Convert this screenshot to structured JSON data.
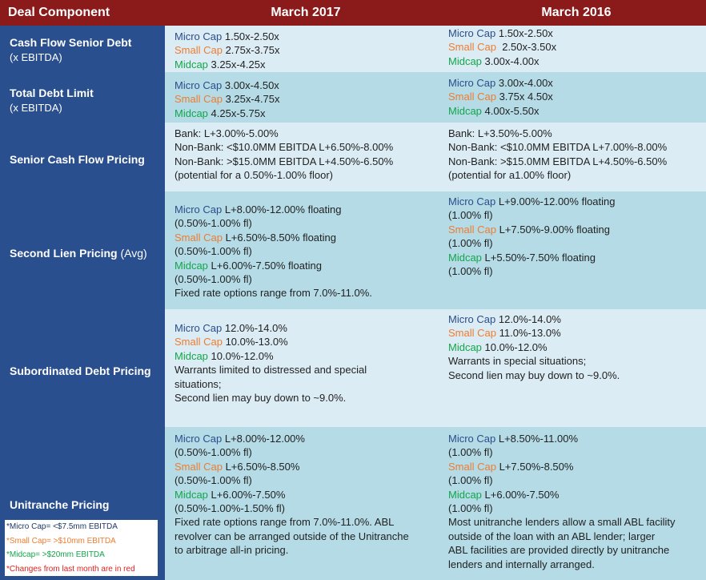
{
  "header": {
    "component_label": "Deal Component",
    "col_2017": "March 2017",
    "col_2016": "March 2016"
  },
  "rows": [
    {
      "label": "Cash Flow Senior Debt",
      "sublabel": "(x EBITDA)",
      "suffix": "",
      "mar2017": [
        [
          {
            "t": "Micro Cap",
            "c": "micro"
          },
          {
            "t": " 1.50x-2.50x",
            "c": "plain"
          }
        ],
        [
          {
            "t": "Small Cap",
            "c": "small"
          },
          {
            "t": " 2.75x-3.75x",
            "c": "plain"
          }
        ],
        [
          {
            "t": "Midcap",
            "c": "mid"
          },
          {
            "t": " 3.25x-4.25x",
            "c": "plain"
          }
        ]
      ],
      "mar2016": [
        [
          {
            "t": "Micro Cap",
            "c": "micro"
          },
          {
            "t": " 1.50x-2.50x",
            "c": "plain"
          }
        ],
        [
          {
            "t": "Small Cap",
            "c": "small"
          },
          {
            "t": "  2.50x-3.50x",
            "c": "plain"
          }
        ],
        [
          {
            "t": "Midcap",
            "c": "mid"
          },
          {
            "t": " 3.00x-4.00x",
            "c": "plain"
          }
        ]
      ]
    },
    {
      "label": "Total Debt Limit",
      "sublabel": "(x EBITDA)",
      "suffix": "",
      "mar2017": [
        [
          {
            "t": "Micro Cap",
            "c": "micro"
          },
          {
            "t": " 3.00x-4.50x",
            "c": "plain"
          }
        ],
        [
          {
            "t": "Small Cap",
            "c": "small"
          },
          {
            "t": " 3.25x-4.75x",
            "c": "plain"
          }
        ],
        [
          {
            "t": "Midcap",
            "c": "mid"
          },
          {
            "t": " 4.25x-5.75x",
            "c": "plain"
          }
        ]
      ],
      "mar2016": [
        [
          {
            "t": "Micro Cap",
            "c": "micro"
          },
          {
            "t": " 3.00x-4.00x",
            "c": "plain"
          }
        ],
        [
          {
            "t": "Small Cap",
            "c": "small"
          },
          {
            "t": " 3.75x 4.50x",
            "c": "plain"
          }
        ],
        [
          {
            "t": "Midcap",
            "c": "mid"
          },
          {
            "t": " 4.00x-5.50x",
            "c": "plain"
          }
        ]
      ]
    },
    {
      "label": "Senior Cash Flow Pricing",
      "sublabel": "",
      "suffix": "",
      "mar2017": [
        [
          {
            "t": "Bank: L+3.00%-5.00%",
            "c": "plain"
          }
        ],
        [
          {
            "t": "Non-Bank: <$10.0MM EBITDA L+6.50%-8.00%",
            "c": "plain"
          }
        ],
        [
          {
            "t": "Non-Bank: >$15.0MM EBITDA L+4.50%-6.50%",
            "c": "plain"
          }
        ],
        [
          {
            "t": "(potential for a 0.50%-1.00% floor)",
            "c": "plain"
          }
        ]
      ],
      "mar2016": [
        [
          {
            "t": "Bank: L+3.50%-5.00%",
            "c": "plain"
          }
        ],
        [
          {
            "t": "Non-Bank: <$10.0MM EBITDA L+7.00%-8.00%",
            "c": "plain"
          }
        ],
        [
          {
            "t": "Non-Bank: >$15.0MM EBITDA L+4.50%-6.50%",
            "c": "plain"
          }
        ],
        [
          {
            "t": "(potential for a1.00% floor)",
            "c": "plain"
          }
        ]
      ]
    },
    {
      "label": "Second Lien Pricing",
      "sublabel": "",
      "suffix": " (Avg)",
      "mar2017": [
        [
          {
            "t": "Micro Cap",
            "c": "micro"
          },
          {
            "t": " L+8.00%-12.00% floating",
            "c": "plain"
          }
        ],
        [
          {
            "t": "(0.50%-1.00% fl)",
            "c": "plain"
          }
        ],
        [
          {
            "t": "Small Cap",
            "c": "small"
          },
          {
            "t": " L+6.50%-8.50% floating",
            "c": "plain"
          }
        ],
        [
          {
            "t": "(0.50%-1.00% fl)",
            "c": "plain"
          }
        ],
        [
          {
            "t": "Midcap",
            "c": "mid"
          },
          {
            "t": " L+6.00%-7.50% floating",
            "c": "plain"
          }
        ],
        [
          {
            "t": "(0.50%-1.00% fl)",
            "c": "plain"
          }
        ],
        [
          {
            "t": "Fixed rate options range from 7.0%-11.0%.",
            "c": "plain"
          }
        ]
      ],
      "mar2016": [
        [
          {
            "t": "Micro Cap",
            "c": "micro"
          },
          {
            "t": " L+9.00%-12.00% floating",
            "c": "plain"
          }
        ],
        [
          {
            "t": "(1.00% fl)",
            "c": "plain"
          }
        ],
        [
          {
            "t": "Small Cap",
            "c": "small"
          },
          {
            "t": " L+7.50%-9.00% floating",
            "c": "plain"
          }
        ],
        [
          {
            "t": "(1.00% fl)",
            "c": "plain"
          }
        ],
        [
          {
            "t": "Midcap",
            "c": "mid"
          },
          {
            "t": " L+5.50%-7.50% floating",
            "c": "plain"
          }
        ],
        [
          {
            "t": "(1.00% fl)",
            "c": "plain"
          }
        ]
      ]
    },
    {
      "label": "Subordinated Debt Pricing",
      "sublabel": "",
      "suffix": "",
      "mar2017": [
        [
          {
            "t": "Micro Cap",
            "c": "micro"
          },
          {
            "t": " 12.0%-14.0%",
            "c": "plain"
          }
        ],
        [
          {
            "t": "Small Cap",
            "c": "small"
          },
          {
            "t": " 10.0%-13.0%",
            "c": "plain"
          }
        ],
        [
          {
            "t": "Midcap",
            "c": "mid"
          },
          {
            "t": " 10.0%-12.0%",
            "c": "plain"
          }
        ],
        [
          {
            "t": "Warrants limited to distressed and special",
            "c": "plain"
          }
        ],
        [
          {
            "t": "situations;",
            "c": "plain"
          }
        ],
        [
          {
            "t": "Second lien may buy down to ~9.0%.",
            "c": "plain"
          }
        ]
      ],
      "mar2016": [
        [
          {
            "t": "Micro Cap",
            "c": "micro"
          },
          {
            "t": " 12.0%-14.0%",
            "c": "plain"
          }
        ],
        [
          {
            "t": "Small Cap",
            "c": "small"
          },
          {
            "t": " 11.0%-13.0%",
            "c": "plain"
          }
        ],
        [
          {
            "t": "Midcap",
            "c": "mid"
          },
          {
            "t": " 10.0%-12.0%",
            "c": "plain"
          }
        ],
        [
          {
            "t": "Warrants in special situations;",
            "c": "plain"
          }
        ],
        [
          {
            "t": "Second lien may buy down to ~9.0%.",
            "c": "plain"
          }
        ]
      ]
    },
    {
      "label": "Unitranche Pricing",
      "sublabel": "",
      "suffix": "",
      "mar2017": [
        [
          {
            "t": "Micro Cap",
            "c": "micro"
          },
          {
            "t": " L+8.00%-12.00%",
            "c": "plain"
          }
        ],
        [
          {
            "t": "(0.50%-1.00% fl)",
            "c": "plain"
          }
        ],
        [
          {
            "t": "Small Cap",
            "c": "small"
          },
          {
            "t": " L+6.50%-8.50%",
            "c": "plain"
          }
        ],
        [
          {
            "t": "(0.50%-1.00% fl)",
            "c": "plain"
          }
        ],
        [
          {
            "t": "Midcap",
            "c": "mid"
          },
          {
            "t": " L+6.00%-7.50%",
            "c": "plain"
          }
        ],
        [
          {
            "t": "(0.50%-1.00%-1.50% fl)",
            "c": "plain"
          }
        ],
        [
          {
            "t": "Fixed rate options range from 7.0%-11.0%. ABL",
            "c": "plain"
          }
        ],
        [
          {
            "t": "revolver can be arranged outside of the Unitranche",
            "c": "plain"
          }
        ],
        [
          {
            "t": "to arbitrage all-in pricing.",
            "c": "plain"
          }
        ]
      ],
      "mar2016": [
        [
          {
            "t": "Micro Cap",
            "c": "micro"
          },
          {
            "t": " L+8.50%-11.00%",
            "c": "plain"
          }
        ],
        [
          {
            "t": "(1.00% fl)",
            "c": "plain"
          }
        ],
        [
          {
            "t": "Small Cap",
            "c": "small"
          },
          {
            "t": " L+7.50%-8.50%",
            "c": "plain"
          }
        ],
        [
          {
            "t": "(1.00% fl)",
            "c": "plain"
          }
        ],
        [
          {
            "t": "Midcap",
            "c": "mid"
          },
          {
            "t": " L+6.00%-7.50%",
            "c": "plain"
          }
        ],
        [
          {
            "t": "(1.00% fl)",
            "c": "plain"
          }
        ],
        [
          {
            "t": "Most unitranche lenders allow a small ABL facility",
            "c": "plain"
          }
        ],
        [
          {
            "t": "outside of the loan with an ABL lender; larger",
            "c": "plain"
          }
        ],
        [
          {
            "t": "ABL facilities are provided directly by unitranche",
            "c": "plain"
          }
        ],
        [
          {
            "t": "lenders and internally arranged.",
            "c": "plain"
          }
        ]
      ]
    }
  ],
  "legend": {
    "micro": "*Micro Cap= <$7.5mm EBITDA",
    "small": "*Small Cap= >$10mm EBITDA",
    "mid": "*Midcap= >$20mm EBITDA",
    "note": "*Changes from last month are in red"
  },
  "colors": {
    "header_bg": "#8b1a1a",
    "label_col_bg": "#2a4f8e",
    "band_light": "#dcecf4",
    "band_dark": "#b4dbe6",
    "micro_cap": "#2b4e8a",
    "small_cap": "#ef7c30",
    "midcap": "#13a64a",
    "change_red": "#e02020"
  }
}
